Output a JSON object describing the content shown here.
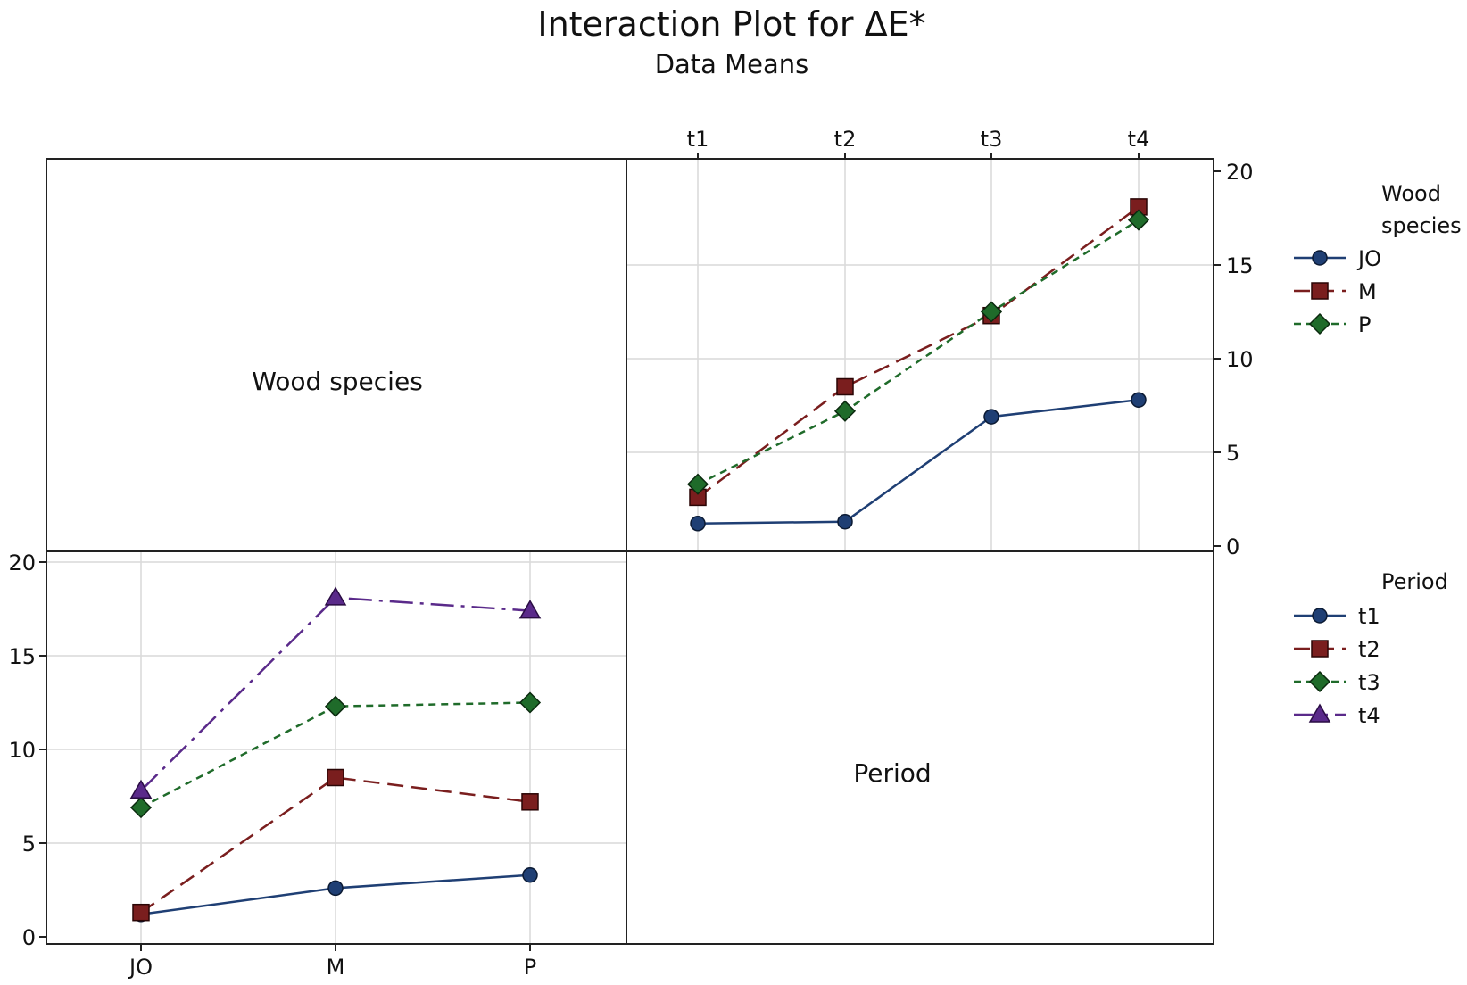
{
  "title": "Interaction Plot for ΔE*",
  "subtitle": "Data Means",
  "colors": {
    "t1": "#1f3f74",
    "t2": "#7a1e1e",
    "t3": "#1f6b2a",
    "t4": "#5a2a8a",
    "JO": "#1f3f74",
    "M": "#7a1e1e",
    "P": "#1f6b2a",
    "grid": "#d9d9d9",
    "frame": "#222222"
  },
  "chart_data": [
    {
      "type": "line",
      "panel": "top-right",
      "categories": [
        "t1",
        "t2",
        "t3",
        "t4"
      ],
      "ylim": [
        0,
        20
      ],
      "yticks": [
        0,
        5,
        10,
        15,
        20
      ],
      "series": [
        {
          "name": "JO",
          "marker": "circle",
          "dash": "solid",
          "values": [
            1.2,
            1.3,
            6.9,
            7.8
          ]
        },
        {
          "name": "M",
          "marker": "square",
          "dash": "longdash",
          "values": [
            2.6,
            8.5,
            12.3,
            18.1
          ]
        },
        {
          "name": "P",
          "marker": "diamond",
          "dash": "shortdash",
          "values": [
            3.3,
            7.2,
            12.5,
            17.4
          ]
        }
      ],
      "legend_title": "Wood species",
      "legend_position": "right"
    },
    {
      "type": "line",
      "panel": "bottom-left",
      "categories": [
        "JO",
        "M",
        "P"
      ],
      "ylim": [
        0,
        20
      ],
      "yticks": [
        0,
        5,
        10,
        15,
        20
      ],
      "series": [
        {
          "name": "t1",
          "marker": "circle",
          "dash": "solid",
          "values": [
            1.2,
            2.6,
            3.3
          ]
        },
        {
          "name": "t2",
          "marker": "square",
          "dash": "longdash",
          "values": [
            1.3,
            8.5,
            7.2
          ]
        },
        {
          "name": "t3",
          "marker": "diamond",
          "dash": "shortdash",
          "values": [
            6.9,
            12.3,
            12.5
          ]
        },
        {
          "name": "t4",
          "marker": "triangle",
          "dash": "dashdot",
          "values": [
            7.8,
            18.1,
            17.4
          ]
        }
      ],
      "legend_title": "Period",
      "legend_position": "right"
    }
  ],
  "facets": {
    "top_left_label": "Wood species",
    "bottom_right_label": "Period"
  },
  "legends": {
    "wood": {
      "title_line1": "Wood",
      "title_line2": "species",
      "entries": [
        "JO",
        "M",
        "P"
      ]
    },
    "period": {
      "title": "Period",
      "entries": [
        "t1",
        "t2",
        "t3",
        "t4"
      ]
    }
  }
}
